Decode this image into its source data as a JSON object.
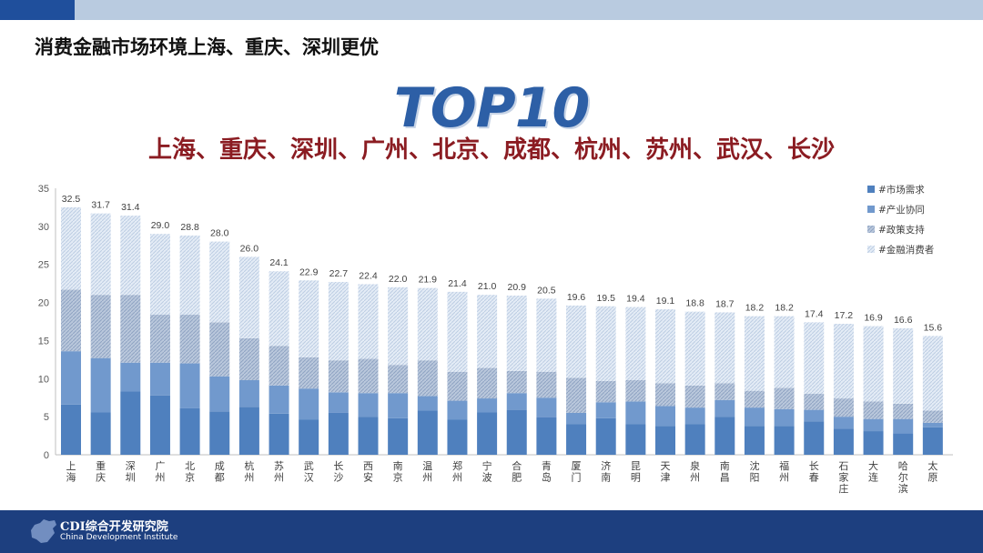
{
  "slide": {
    "title": "消费金融市场环境上海、重庆、深圳更优",
    "top_label": "TOP10",
    "top_cities": "上海、重庆、深圳、广州、北京、成都、杭州、苏州、武汉、长沙"
  },
  "footer": {
    "brand": "CDI综合开发研究院",
    "subtitle": "China Development Institute"
  },
  "colors": {
    "topbar_dark": "#1f4f9c",
    "topbar_light": "#b9cbe0",
    "footer": "#1d3f7f",
    "top_label": "#2d5fa6",
    "top_cities": "#8b1c22"
  },
  "chart_data": {
    "type": "bar",
    "stacked": true,
    "categories": [
      "上海",
      "重庆",
      "深圳",
      "广州",
      "北京",
      "成都",
      "杭州",
      "苏州",
      "武汉",
      "长沙",
      "西安",
      "南京",
      "温州",
      "郑州",
      "宁波",
      "合肥",
      "青岛",
      "厦门",
      "济南",
      "昆明",
      "天津",
      "泉州",
      "南昌",
      "沈阳",
      "福州",
      "长春",
      "石家庄",
      "大连",
      "哈尔滨",
      "太原"
    ],
    "totals": [
      32.5,
      31.7,
      31.4,
      29.0,
      28.8,
      28.0,
      26.0,
      24.1,
      22.9,
      22.7,
      22.4,
      22.0,
      21.9,
      21.4,
      21.0,
      20.9,
      20.5,
      19.6,
      19.5,
      19.4,
      19.1,
      18.8,
      18.7,
      18.2,
      18.2,
      17.4,
      17.2,
      16.9,
      16.6,
      15.6
    ],
    "total_labels": [
      "32.5",
      "31.7",
      "31.4",
      "29.0",
      "28.8",
      "28.0",
      "26.0",
      "24.1",
      "22.9",
      "22.7",
      "22.4",
      "22.0",
      "21.9",
      "21.4",
      "21.0",
      "20.9",
      "20.5",
      "19.6",
      "19.5",
      "19.4",
      "19.1",
      "18.8",
      "18.7",
      "18.2",
      "18.2",
      "17.4",
      "17.2",
      "16.9",
      "16.6",
      "15.6"
    ],
    "series": [
      {
        "name": "#市场需求",
        "color": "#4a7ebb",
        "values": [
          6.6,
          5.6,
          8.3,
          7.8,
          6.1,
          5.7,
          6.3,
          5.4,
          4.6,
          5.5,
          5.0,
          4.8,
          5.8,
          4.6,
          5.6,
          5.9,
          4.9,
          4.0,
          4.8,
          4.0,
          3.8,
          4.0,
          5.0,
          3.8,
          3.8,
          4.4,
          3.4,
          3.1,
          2.8,
          3.6
        ]
      },
      {
        "name": "#产业协同",
        "color": "#7199cd",
        "values": [
          7.0,
          7.1,
          3.8,
          4.3,
          5.9,
          4.6,
          3.5,
          3.7,
          4.1,
          2.7,
          3.1,
          3.3,
          1.9,
          2.5,
          1.8,
          2.2,
          2.6,
          1.5,
          2.1,
          3.0,
          2.6,
          2.2,
          2.2,
          2.4,
          2.2,
          1.5,
          1.6,
          1.6,
          1.9,
          0.6
        ]
      },
      {
        "name": "#政策支持",
        "color": "#a9b8d0",
        "values": [
          8.1,
          8.3,
          8.9,
          6.3,
          6.4,
          7.1,
          5.5,
          5.2,
          4.1,
          4.2,
          4.5,
          3.7,
          4.7,
          3.8,
          4.0,
          2.9,
          3.4,
          4.6,
          2.8,
          2.8,
          3.0,
          2.9,
          2.2,
          2.2,
          2.8,
          2.1,
          2.4,
          2.3,
          2.0,
          1.6
        ]
      },
      {
        "name": "#金融消费者",
        "color": "#c7d7ec",
        "values": [
          10.8,
          10.7,
          10.4,
          10.6,
          10.4,
          10.6,
          10.7,
          9.8,
          10.1,
          10.3,
          9.8,
          10.2,
          9.5,
          10.5,
          9.6,
          9.9,
          9.6,
          9.5,
          9.8,
          9.6,
          9.7,
          9.7,
          9.3,
          9.8,
          9.4,
          9.4,
          9.8,
          9.9,
          9.9,
          9.8
        ]
      }
    ],
    "ylim": [
      0,
      35
    ],
    "yticks": [
      "0",
      "5",
      "10",
      "15",
      "20",
      "25",
      "30",
      "35"
    ],
    "legend_position": "top-right",
    "grid": false
  }
}
